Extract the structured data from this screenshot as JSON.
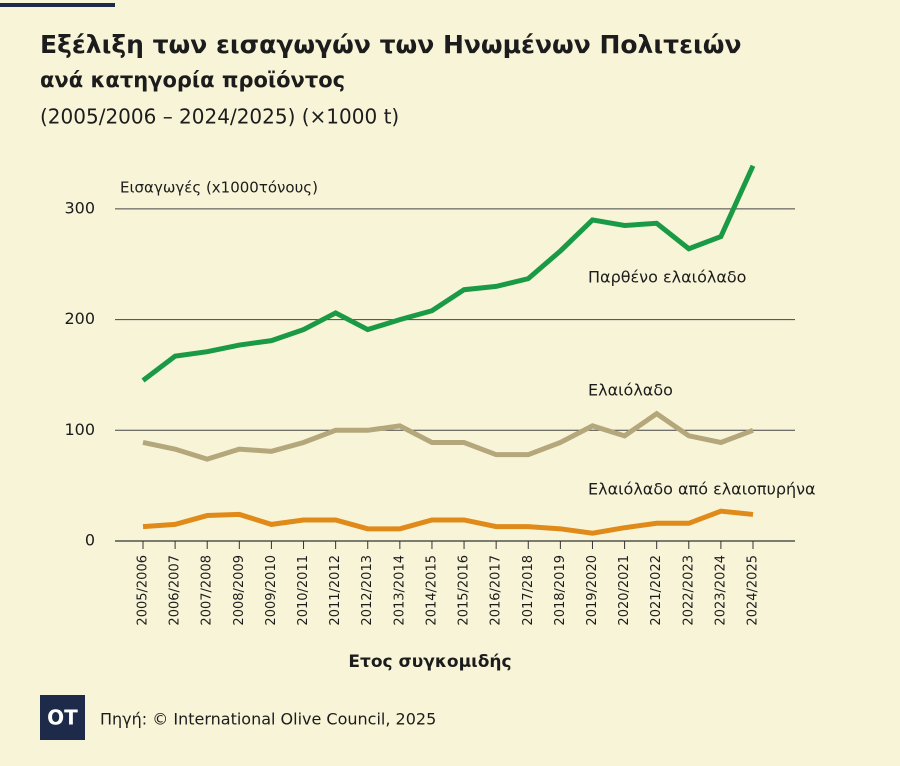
{
  "chart_data": {
    "type": "line",
    "title": "Εξέλιξη των εισαγωγών των Ηνωμένων Πολιτειών",
    "subtitle": "ανά κατηγορία προϊόντος",
    "note": "(2005/2006 – 2024/2025) (×1000 t)",
    "y_label": "Εισαγωγές (x1000τόνους)",
    "x_label": "Ετος συγκομιδής",
    "categories": [
      "2005/2006",
      "2006/2007",
      "2007/2008",
      "2008/2009",
      "2009/2010",
      "2010/2011",
      "2011/2012",
      "2012/2013",
      "2013/2014",
      "2014/2015",
      "2015/2016",
      "2016/2017",
      "2017/2018",
      "2018/2019",
      "2019/2020",
      "2020/2021",
      "2021/2022",
      "2022/2023",
      "2023/2024",
      "2024/2025"
    ],
    "series": [
      {
        "name": "Παρθένο ελαιόλαδο",
        "color": "#1a9a45",
        "values": [
          145,
          167,
          171,
          177,
          181,
          191,
          206,
          191,
          200,
          208,
          227,
          230,
          237,
          262,
          290,
          285,
          287,
          264,
          275,
          339
        ]
      },
      {
        "name": "Ελαιόλαδο",
        "color": "#b5a77c",
        "values": [
          89,
          83,
          74,
          83,
          81,
          89,
          100,
          100,
          104,
          89,
          89,
          78,
          78,
          89,
          104,
          95,
          115,
          95,
          89,
          100
        ]
      },
      {
        "name": "Ελαιόλαδο από ελαιοπυρήνα",
        "color": "#e08a1a",
        "values": [
          13,
          15,
          23,
          24,
          15,
          19,
          19,
          11,
          11,
          19,
          19,
          13,
          13,
          11,
          7,
          12,
          16,
          16,
          27,
          24
        ]
      }
    ],
    "ylim": [
      0,
      340
    ],
    "yticks": [
      0,
      100,
      200,
      300
    ],
    "grid": true
  },
  "source": "Πηγή: © International Olive Council, 2025",
  "logo": "OT"
}
